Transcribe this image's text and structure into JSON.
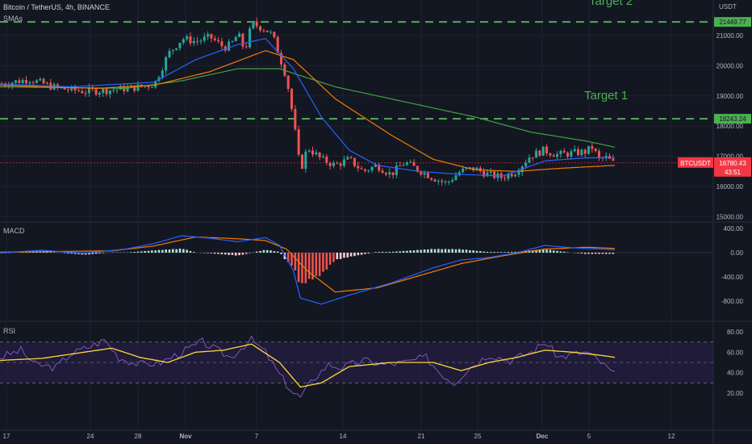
{
  "header": {
    "symbol_line": "Bitcoin / TetherUS, 4h, BINANCE",
    "sma_label": "SMAs",
    "currency": "USDT"
  },
  "panes": {
    "macd_label": "MACD",
    "rsi_label": "RSI"
  },
  "annotations": {
    "target1": "Target 1",
    "target2": "Target 2"
  },
  "colors": {
    "background": "#131722",
    "grid": "#1f2330",
    "up": "#26a69a",
    "down": "#ef5350",
    "green_level": "#4caf50",
    "sma_fast": "#2962ff",
    "sma_mid": "#f57c00",
    "sma_slow": "#43a047",
    "rsi_line": "#7e57c2",
    "rsi_ma": "#fdd835",
    "rsi_band": "#2a1f4a",
    "price_badge": "#f23645"
  },
  "chart_data": {
    "type": "candlestick",
    "price_axis": {
      "min": 15000,
      "max": 21500,
      "ticks": [
        "15000.00",
        "16000.00",
        "17000.00",
        "18000.00",
        "19000.00",
        "20000.00",
        "21000.00"
      ]
    },
    "levels": [
      {
        "price": 21449.77,
        "label": "21449.77"
      },
      {
        "price": 18243.24,
        "label": "18243.24"
      }
    ],
    "current_price": {
      "symbol": "BTCUSDT",
      "price": 16780.43,
      "label": "16780.43",
      "countdown": "43:51"
    },
    "x_ticks": [
      "17",
      "24",
      "28",
      "Nov",
      "7",
      "14",
      "21",
      "25",
      "Dec",
      "5",
      "12"
    ],
    "price_points": [
      [
        0,
        19400
      ],
      [
        4,
        19550
      ],
      [
        8,
        19250
      ],
      [
        12,
        19150
      ],
      [
        16,
        19200
      ],
      [
        20,
        19300
      ],
      [
        22,
        19400
      ],
      [
        24,
        20400
      ],
      [
        26,
        20900
      ],
      [
        28,
        20800
      ],
      [
        30,
        20950
      ],
      [
        32,
        20600
      ],
      [
        33,
        20700
      ],
      [
        34,
        21050
      ],
      [
        35,
        20500
      ],
      [
        36,
        21400
      ],
      [
        37,
        21300
      ],
      [
        38,
        21200
      ],
      [
        39,
        21000
      ],
      [
        40,
        20300
      ],
      [
        41,
        19600
      ],
      [
        42,
        18200
      ],
      [
        43,
        16500
      ],
      [
        44,
        17300
      ],
      [
        46,
        16900
      ],
      [
        48,
        16700
      ],
      [
        50,
        16900
      ],
      [
        52,
        16500
      ],
      [
        54,
        16700
      ],
      [
        56,
        16400
      ],
      [
        58,
        16800
      ],
      [
        60,
        16550
      ],
      [
        62,
        16300
      ],
      [
        64,
        16100
      ],
      [
        66,
        16500
      ],
      [
        68,
        16600
      ],
      [
        70,
        16400
      ],
      [
        72,
        16300
      ],
      [
        74,
        16500
      ],
      [
        76,
        17000
      ],
      [
        78,
        17200
      ],
      [
        80,
        17050
      ],
      [
        82,
        17100
      ],
      [
        84,
        17150
      ],
      [
        85,
        17300
      ],
      [
        86,
        16900
      ],
      [
        87,
        16950
      ],
      [
        88,
        16780
      ]
    ],
    "sma_fast": [
      [
        0,
        19400
      ],
      [
        10,
        19300
      ],
      [
        22,
        19450
      ],
      [
        28,
        20200
      ],
      [
        34,
        20700
      ],
      [
        38,
        20900
      ],
      [
        42,
        19900
      ],
      [
        46,
        18300
      ],
      [
        50,
        17200
      ],
      [
        54,
        16700
      ],
      [
        60,
        16500
      ],
      [
        66,
        16400
      ],
      [
        72,
        16350
      ],
      [
        78,
        16850
      ],
      [
        84,
        16950
      ],
      [
        88,
        16950
      ]
    ],
    "sma_mid": [
      [
        0,
        19350
      ],
      [
        14,
        19250
      ],
      [
        22,
        19350
      ],
      [
        30,
        19800
      ],
      [
        38,
        20500
      ],
      [
        42,
        20200
      ],
      [
        48,
        18900
      ],
      [
        56,
        17700
      ],
      [
        62,
        16900
      ],
      [
        68,
        16550
      ],
      [
        74,
        16500
      ],
      [
        80,
        16600
      ],
      [
        88,
        16700
      ]
    ],
    "sma_slow": [
      [
        0,
        19300
      ],
      [
        18,
        19250
      ],
      [
        26,
        19500
      ],
      [
        34,
        19900
      ],
      [
        40,
        19900
      ],
      [
        48,
        19300
      ],
      [
        58,
        18800
      ],
      [
        68,
        18300
      ],
      [
        76,
        17800
      ],
      [
        84,
        17500
      ],
      [
        88,
        17300
      ]
    ],
    "macd": {
      "axis_ticks": [
        "400.00",
        "0.00",
        "-400.00",
        "-800.00"
      ],
      "range": [
        -1000,
        450
      ],
      "macd_line": [
        [
          0,
          0
        ],
        [
          6,
          40
        ],
        [
          12,
          -10
        ],
        [
          18,
          60
        ],
        [
          22,
          150
        ],
        [
          26,
          280
        ],
        [
          30,
          240
        ],
        [
          34,
          180
        ],
        [
          38,
          250
        ],
        [
          40,
          120
        ],
        [
          42,
          -300
        ],
        [
          43,
          -750
        ],
        [
          46,
          -850
        ],
        [
          50,
          -700
        ],
        [
          56,
          -500
        ],
        [
          62,
          -250
        ],
        [
          66,
          -120
        ],
        [
          70,
          -80
        ],
        [
          74,
          0
        ],
        [
          78,
          120
        ],
        [
          82,
          80
        ],
        [
          86,
          60
        ],
        [
          88,
          50
        ]
      ],
      "signal_line": [
        [
          0,
          10
        ],
        [
          8,
          20
        ],
        [
          16,
          30
        ],
        [
          22,
          110
        ],
        [
          28,
          260
        ],
        [
          34,
          230
        ],
        [
          38,
          200
        ],
        [
          41,
          60
        ],
        [
          44,
          -300
        ],
        [
          48,
          -650
        ],
        [
          54,
          -580
        ],
        [
          60,
          -380
        ],
        [
          66,
          -180
        ],
        [
          72,
          -50
        ],
        [
          78,
          60
        ],
        [
          84,
          90
        ],
        [
          88,
          70
        ]
      ]
    },
    "rsi": {
      "axis_ticks": [
        "80.00",
        "60.00",
        "40.00",
        "20.00"
      ],
      "range": [
        10,
        85
      ],
      "bands": [
        70,
        50,
        30
      ],
      "rsi_line": [
        [
          0,
          55
        ],
        [
          3,
          62
        ],
        [
          5,
          48
        ],
        [
          8,
          45
        ],
        [
          10,
          58
        ],
        [
          13,
          66
        ],
        [
          15,
          72
        ],
        [
          17,
          55
        ],
        [
          20,
          48
        ],
        [
          23,
          50
        ],
        [
          26,
          60
        ],
        [
          29,
          70
        ],
        [
          31,
          62
        ],
        [
          33,
          55
        ],
        [
          35,
          67
        ],
        [
          36,
          72
        ],
        [
          38,
          60
        ],
        [
          40,
          38
        ],
        [
          42,
          20
        ],
        [
          43,
          16
        ],
        [
          45,
          35
        ],
        [
          47,
          48
        ],
        [
          49,
          45
        ],
        [
          52,
          52
        ],
        [
          55,
          48
        ],
        [
          58,
          50
        ],
        [
          61,
          55
        ],
        [
          63,
          40
        ],
        [
          65,
          30
        ],
        [
          67,
          44
        ],
        [
          70,
          58
        ],
        [
          73,
          52
        ],
        [
          76,
          60
        ],
        [
          78,
          70
        ],
        [
          80,
          55
        ],
        [
          82,
          58
        ],
        [
          84,
          60
        ],
        [
          86,
          50
        ],
        [
          88,
          38
        ]
      ],
      "rsi_ma": [
        [
          0,
          52
        ],
        [
          6,
          54
        ],
        [
          12,
          60
        ],
        [
          16,
          64
        ],
        [
          20,
          55
        ],
        [
          24,
          50
        ],
        [
          28,
          60
        ],
        [
          32,
          62
        ],
        [
          36,
          68
        ],
        [
          40,
          50
        ],
        [
          43,
          26
        ],
        [
          46,
          30
        ],
        [
          50,
          46
        ],
        [
          56,
          50
        ],
        [
          62,
          50
        ],
        [
          66,
          42
        ],
        [
          70,
          50
        ],
        [
          74,
          55
        ],
        [
          78,
          62
        ],
        [
          82,
          60
        ],
        [
          86,
          57
        ],
        [
          88,
          55
        ]
      ]
    }
  }
}
